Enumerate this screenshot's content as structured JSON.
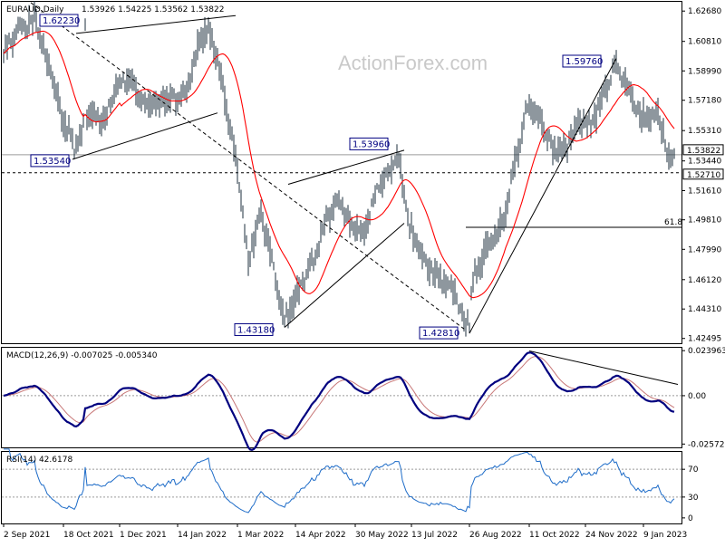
{
  "watermark": "ActionForex.com",
  "chart_data": {
    "type": "candlestick",
    "panels": {
      "price": {
        "title": "EURAUD,Daily",
        "ohlc_values": "1.53926 1.54225 1.53562 1.53822",
        "ylim": [
          1.422,
          1.6325
        ],
        "ticks": [
          "1.62680",
          "1.60810",
          "1.58990",
          "1.57180",
          "1.55310",
          "1.53440",
          "1.51610",
          "1.49810",
          "1.47990",
          "1.46120",
          "1.44310",
          "1.42495"
        ],
        "tick_values": [
          1.6268,
          1.6081,
          1.5899,
          1.5718,
          1.5531,
          1.5344,
          1.5161,
          1.4981,
          1.4799,
          1.4612,
          1.4431,
          1.42495
        ],
        "current_price": {
          "label": "1.53822",
          "value": 1.53822
        },
        "support_line": {
          "label": "1.52710",
          "value": 1.5271
        },
        "fib_label": "61.8",
        "fib_value": 1.4935,
        "fib_start_index": 255,
        "annotations": [
          {
            "label": "1.62230",
            "index": 45,
            "value": 1.6223
          },
          {
            "label": "1.53540",
            "index": 39,
            "value": 1.5354
          },
          {
            "label": "1.53960",
            "index": 218,
            "value": 1.5396
          },
          {
            "label": "1.43180",
            "index": 155,
            "value": 1.4318
          },
          {
            "label": "1.42810",
            "index": 257,
            "value": 1.4281
          },
          {
            "label": "1.59760",
            "index": 336,
            "value": 1.5976
          }
        ],
        "trendlines": [
          {
            "from": [
              40,
              1.613
            ],
            "to": [
              128,
              1.624
            ]
          },
          {
            "from": [
              38,
              1.5354
            ],
            "to": [
              118,
              1.564
            ]
          },
          {
            "from": [
              15,
              1.632
            ],
            "to": [
              255,
              1.43
            ]
          },
          {
            "from": [
              157,
              1.52
            ],
            "to": [
              221,
              1.541
            ]
          },
          {
            "from": [
              155,
              1.4318
            ],
            "to": [
              221,
              1.496
            ]
          },
          {
            "from": [
              257,
              1.4281
            ],
            "to": [
              338,
              1.5976
            ]
          }
        ],
        "anchors": [
          [
            0,
            1.6
          ],
          [
            10,
            1.617
          ],
          [
            17,
            1.622
          ],
          [
            23,
            1.6
          ],
          [
            33,
            1.56
          ],
          [
            39,
            1.542
          ],
          [
            47,
            1.565
          ],
          [
            56,
            1.56
          ],
          [
            63,
            1.585
          ],
          [
            70,
            1.582
          ],
          [
            80,
            1.568
          ],
          [
            90,
            1.572
          ],
          [
            100,
            1.575
          ],
          [
            109,
            1.61
          ],
          [
            113,
            1.618
          ],
          [
            118,
            1.595
          ],
          [
            124,
            1.562
          ],
          [
            130,
            1.52
          ],
          [
            135,
            1.472
          ],
          [
            142,
            1.505
          ],
          [
            150,
            1.462
          ],
          [
            155,
            1.438
          ],
          [
            164,
            1.458
          ],
          [
            172,
            1.475
          ],
          [
            178,
            1.5
          ],
          [
            185,
            1.508
          ],
          [
            192,
            1.495
          ],
          [
            199,
            1.49
          ],
          [
            205,
            1.515
          ],
          [
            213,
            1.528
          ],
          [
            218,
            1.538
          ],
          [
            224,
            1.492
          ],
          [
            231,
            1.475
          ],
          [
            240,
            1.462
          ],
          [
            248,
            1.455
          ],
          [
            255,
            1.432
          ],
          [
            261,
            1.468
          ],
          [
            268,
            1.485
          ],
          [
            276,
            1.498
          ],
          [
            283,
            1.537
          ],
          [
            289,
            1.568
          ],
          [
            296,
            1.56
          ],
          [
            303,
            1.54
          ],
          [
            310,
            1.543
          ],
          [
            317,
            1.558
          ],
          [
            324,
            1.556
          ],
          [
            332,
            1.578
          ],
          [
            338,
            1.592
          ],
          [
            344,
            1.58
          ],
          [
            350,
            1.565
          ],
          [
            356,
            1.56
          ],
          [
            361,
            1.566
          ],
          [
            366,
            1.54
          ],
          [
            370,
            1.538
          ]
        ],
        "count": 371
      },
      "macd": {
        "title": "MACD(12,26,9) -0.007025 -0.005340",
        "ticks": [
          "0.023963",
          "0.00",
          "-0.025726"
        ],
        "tick_values": [
          0.023963,
          0.0,
          -0.025726
        ],
        "ylim": [
          -0.0275,
          0.0255
        ],
        "trendline": {
          "from": [
            290,
            0.0238
          ],
          "to": [
            372,
            0.006
          ]
        }
      },
      "rsi": {
        "title": "RSI(14) 42.6178",
        "ticks": [
          "70",
          "30",
          "0"
        ],
        "tick_values": [
          70,
          30,
          0
        ],
        "ylim": [
          -8,
          95
        ],
        "levels": [
          70,
          30
        ]
      }
    },
    "x_labels": [
      {
        "label": "2 Sep 2021",
        "index": 0
      },
      {
        "label": "18 Oct 2021",
        "index": 33
      },
      {
        "label": "1 Dec 2021",
        "index": 64
      },
      {
        "label": "14 Jan 2022",
        "index": 96
      },
      {
        "label": "1 Mar 2022",
        "index": 129
      },
      {
        "label": "14 Apr 2022",
        "index": 161
      },
      {
        "label": "30 May 2022",
        "index": 194
      },
      {
        "label": "13 Jul 2022",
        "index": 225
      },
      {
        "label": "26 Aug 2022",
        "index": 257
      },
      {
        "label": "11 Oct 2022",
        "index": 290
      },
      {
        "label": "24 Nov 2022",
        "index": 321
      },
      {
        "label": "9 Jan 2023",
        "index": 353
      }
    ],
    "colors": {
      "bars": "#1c2f3d",
      "ma": "#ff0000",
      "macd": "#00007f",
      "signal": "#c87878",
      "rsi": "#1e6cc8",
      "annotation": "#000080",
      "grid": "#9a9a9a"
    }
  }
}
